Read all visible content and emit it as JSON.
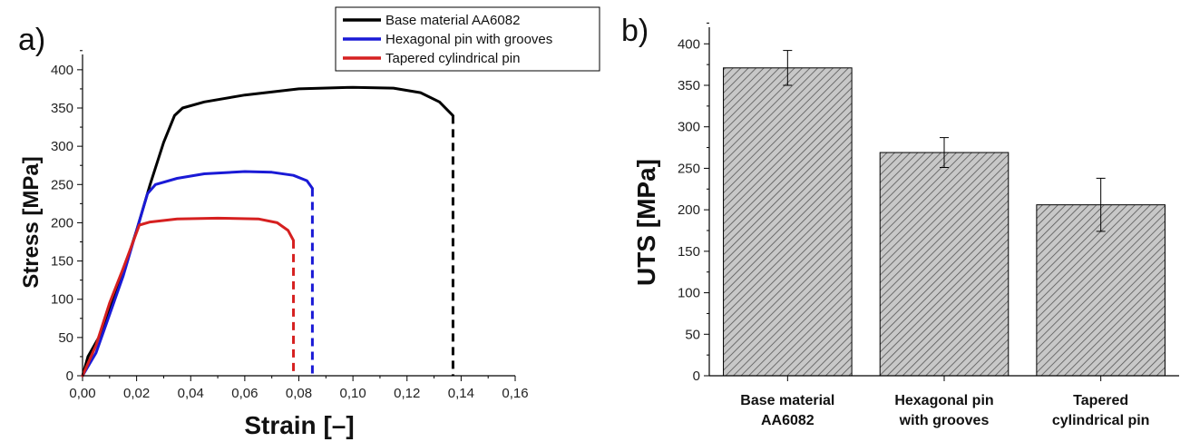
{
  "panel_a_label": "a)",
  "panel_b_label": "b)",
  "chart_data": [
    {
      "type": "line",
      "title": "",
      "xlabel": "Strain [–]",
      "ylabel": "Stress [MPa]",
      "xlim": [
        0,
        0.16
      ],
      "ylim": [
        0,
        420
      ],
      "x_ticks": [
        "0,00",
        "0,02",
        "0,04",
        "0,06",
        "0,08",
        "0,10",
        "0,12",
        "0,14",
        "0,16"
      ],
      "y_ticks": [
        "0",
        "50",
        "100",
        "150",
        "200",
        "250",
        "300",
        "350",
        "400"
      ],
      "legend_position": "top-right",
      "series": [
        {
          "name": "Base material AA6082",
          "color": "#000000",
          "points": [
            [
              0,
              0
            ],
            [
              0.002,
              25
            ],
            [
              0.006,
              50
            ],
            [
              0.01,
              85
            ],
            [
              0.015,
              135
            ],
            [
              0.02,
              190
            ],
            [
              0.025,
              250
            ],
            [
              0.03,
              305
            ],
            [
              0.034,
              340
            ],
            [
              0.037,
              350
            ],
            [
              0.045,
              358
            ],
            [
              0.06,
              367
            ],
            [
              0.08,
              375
            ],
            [
              0.1,
              377
            ],
            [
              0.115,
              376
            ],
            [
              0.125,
              370
            ],
            [
              0.132,
              358
            ],
            [
              0.137,
              340
            ]
          ],
          "fracture": [
            0.137,
            340
          ]
        },
        {
          "name": "Hexagonal pin with grooves",
          "color": "#1a1ad6",
          "points": [
            [
              0,
              0
            ],
            [
              0.005,
              30
            ],
            [
              0.01,
              80
            ],
            [
              0.015,
              130
            ],
            [
              0.02,
              190
            ],
            [
              0.024,
              238
            ],
            [
              0.027,
              250
            ],
            [
              0.035,
              258
            ],
            [
              0.045,
              264
            ],
            [
              0.06,
              267
            ],
            [
              0.07,
              266
            ],
            [
              0.078,
              262
            ],
            [
              0.083,
              255
            ],
            [
              0.085,
              245
            ]
          ],
          "fracture": [
            0.085,
            245
          ]
        },
        {
          "name": "Tapered cylindrical pin",
          "color": "#d62020",
          "points": [
            [
              0,
              0
            ],
            [
              0.005,
              40
            ],
            [
              0.01,
              95
            ],
            [
              0.015,
              140
            ],
            [
              0.021,
              197
            ],
            [
              0.025,
              201
            ],
            [
              0.035,
              205
            ],
            [
              0.05,
              206
            ],
            [
              0.065,
              205
            ],
            [
              0.072,
              200
            ],
            [
              0.076,
              190
            ],
            [
              0.078,
              177
            ]
          ],
          "fracture": [
            0.078,
            177
          ]
        }
      ]
    },
    {
      "type": "bar",
      "title": "",
      "xlabel": "",
      "ylabel": "UTS [MPa]",
      "ylim": [
        0,
        420
      ],
      "y_ticks": [
        "0",
        "50",
        "100",
        "150",
        "200",
        "250",
        "300",
        "350",
        "400"
      ],
      "categories": [
        [
          "Base material",
          "AA6082"
        ],
        [
          "Hexagonal pin",
          "with grooves"
        ],
        [
          "Tapered",
          "cylindrical pin"
        ]
      ],
      "values": [
        371,
        269,
        206
      ],
      "errors": [
        21,
        18,
        32
      ],
      "bar_color": "#c8c8c8"
    }
  ]
}
